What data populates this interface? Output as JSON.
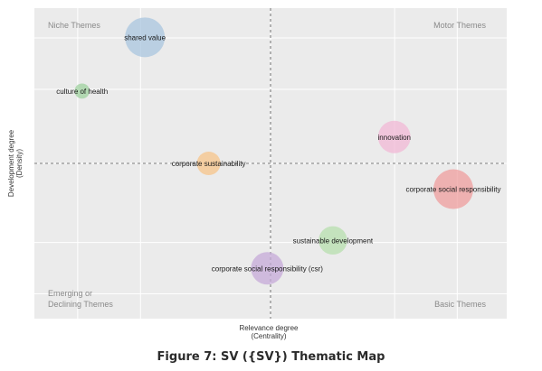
{
  "chart_data": {
    "type": "scatter",
    "title": "",
    "xlabel": "Relevance degree",
    "xlabel_sub": "(Centrality)",
    "ylabel": "Development degree",
    "ylabel_sub": "(Density)",
    "xlim": [
      0,
      1
    ],
    "ylim": [
      0,
      1
    ],
    "x_divider": 0.5,
    "y_divider": 0.5,
    "grid": true,
    "quadrants": {
      "top_left": "Niche Themes",
      "top_right": "Motor Themes",
      "bottom_left_line1": "Emerging or",
      "bottom_left_line2": "Declining Themes",
      "bottom_right": "Basic Themes"
    },
    "points": [
      {
        "label": "shared value",
        "x": 0.234,
        "y": 0.906,
        "size": 1.0,
        "color": "#a9c6df"
      },
      {
        "label": "culture of health",
        "x": 0.101,
        "y": 0.733,
        "size": 0.08,
        "color": "#9fd29f"
      },
      {
        "label": "innovation",
        "x": 0.762,
        "y": 0.585,
        "size": 0.62,
        "color": "#f2b8d6"
      },
      {
        "label": "corporate sustainability",
        "x": 0.369,
        "y": 0.5,
        "size": 0.28,
        "color": "#f7c48a"
      },
      {
        "label": "corporate social responsibility",
        "x": 0.887,
        "y": 0.417,
        "size": 1.0,
        "color": "#ef9d9d"
      },
      {
        "label": "sustainable development",
        "x": 0.632,
        "y": 0.252,
        "size": 0.45,
        "color": "#b7dfae"
      },
      {
        "label": "corporate social responsibility (csr)",
        "x": 0.493,
        "y": 0.162,
        "size": 0.62,
        "color": "#c5a9d8"
      }
    ]
  },
  "caption": "Figure 7: SV ({SV}) Thematic Map"
}
